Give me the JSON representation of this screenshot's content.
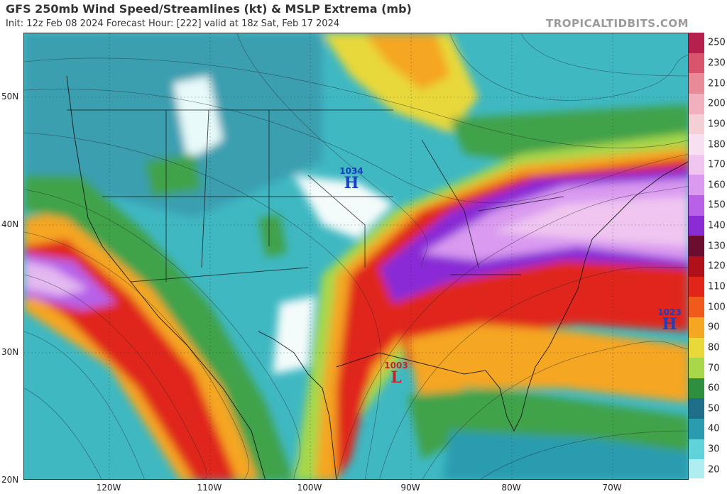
{
  "header": {
    "title": "GFS 250mb Wind Speed/Streamlines (kt) & MSLP Extrema (mb)",
    "subtitle": "Init: 12z Feb 08 2024   Forecast Hour: [222]   valid at 18z Sat, Feb 17 2024",
    "brand": "TROPICALTIDBITS.COM"
  },
  "map": {
    "lat_labels": [
      "50N",
      "40N",
      "30N",
      "20N"
    ],
    "lon_labels": [
      "120W",
      "110W",
      "100W",
      "90W",
      "80W",
      "70W"
    ]
  },
  "colorbar": {
    "labels": [
      "250",
      "230",
      "210",
      "200",
      "190",
      "180",
      "170",
      "160",
      "150",
      "140",
      "130",
      "120",
      "110",
      "100",
      "90",
      "80",
      "70",
      "60",
      "50",
      "40",
      "30",
      "20"
    ],
    "colors": [
      "#b5204f",
      "#d9556e",
      "#e98a99",
      "#f0b1bc",
      "#f5cfd6",
      "#f7e0f0",
      "#f0c6f0",
      "#d99af0",
      "#b860e8",
      "#8a2bd6",
      "#6b0d2e",
      "#b0101a",
      "#e0251a",
      "#f05a1a",
      "#f5a623",
      "#e8d83a",
      "#a8d84a",
      "#2e8f3f",
      "#1f6e8a",
      "#2a9cb0",
      "#5fd3d9",
      "#aeeef0"
    ]
  },
  "markers": [
    {
      "type": "H",
      "value": "1034",
      "color": "#1a3fc0"
    },
    {
      "type": "H",
      "value": "1023",
      "color": "#1a3fc0"
    },
    {
      "type": "L",
      "value": "1003",
      "color": "#c0282c"
    }
  ]
}
